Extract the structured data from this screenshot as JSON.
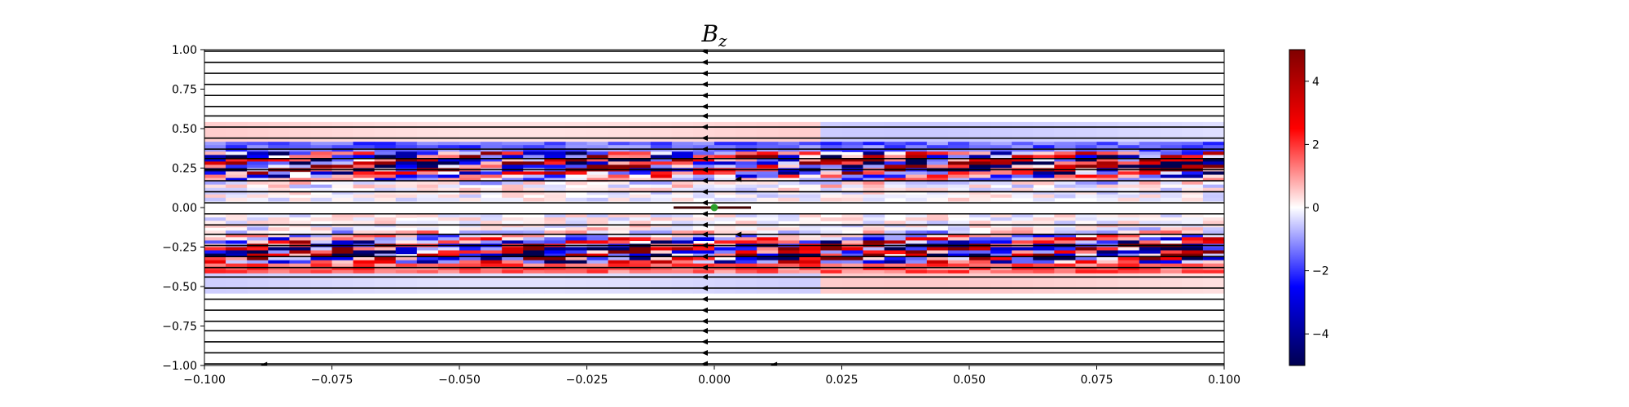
{
  "chart_data": {
    "type": "heatmap",
    "title": "B",
    "title_subscript": "z",
    "xlabel": "",
    "ylabel": "",
    "xlim": [
      -0.1,
      0.1
    ],
    "ylim": [
      -1.0,
      1.0
    ],
    "x_ticks": [
      -0.1,
      -0.075,
      -0.05,
      -0.025,
      0.0,
      0.025,
      0.05,
      0.075,
      0.1
    ],
    "x_tick_labels": [
      "−0.100",
      "−0.075",
      "−0.050",
      "−0.025",
      "0.000",
      "0.025",
      "0.050",
      "0.075",
      "0.100"
    ],
    "y_ticks": [
      1.0,
      0.75,
      0.5,
      0.25,
      0.0,
      -0.25,
      -0.5,
      -0.75,
      -1.0
    ],
    "y_tick_labels": [
      "1.00",
      "0.75",
      "0.50",
      "0.25",
      "0.00",
      "−0.25",
      "−0.50",
      "−0.75",
      "−1.00"
    ],
    "colormap": "seismic",
    "colorbar": {
      "range": [
        -5,
        5
      ],
      "ticks": [
        4,
        2,
        0,
        -2,
        -4
      ],
      "tick_labels": [
        "4",
        "2",
        "0",
        "−2",
        "−4"
      ]
    },
    "field_lines": {
      "y_values": [
        0.99,
        0.92,
        0.85,
        0.78,
        0.71,
        0.64,
        0.58,
        0.51,
        0.44,
        0.37,
        0.31,
        0.24,
        0.17,
        0.1,
        0.03,
        -0.04,
        -0.11,
        -0.17,
        -0.24,
        -0.31,
        -0.38,
        -0.44,
        -0.51,
        -0.58,
        -0.65,
        -0.72,
        -0.78,
        -0.85,
        -0.92,
        -0.99
      ],
      "direction": "negative-x",
      "arrow_x": 0.0,
      "extra_arrows": [
        [
          0.005,
          0.18
        ],
        [
          0.005,
          -0.17
        ],
        [
          -0.088,
          -0.995
        ],
        [
          0.012,
          -0.995
        ]
      ]
    },
    "marker": {
      "x": 0.0,
      "y": 0.0,
      "color": "#2ca02c"
    },
    "center_bar": {
      "x_range": [
        -0.008,
        0.004
      ],
      "y": 0.0
    },
    "bands": [
      {
        "y_range": [
          0.05,
          0.4
        ],
        "polarity": "mixed",
        "peak": 5
      },
      {
        "y_range": [
          -0.4,
          -0.05
        ],
        "polarity": "mixed",
        "peak": 5
      }
    ]
  }
}
